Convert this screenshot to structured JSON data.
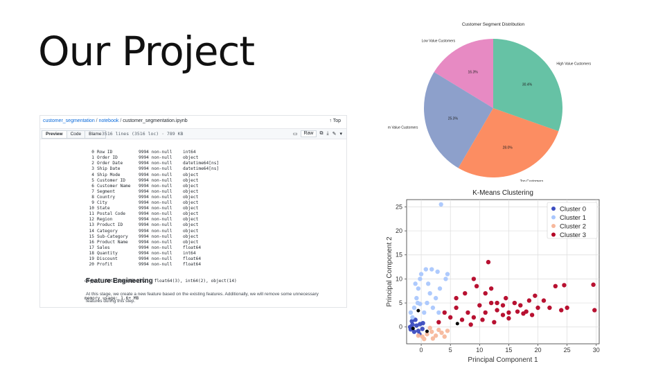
{
  "slide": {
    "title": "Our Project"
  },
  "github": {
    "path": {
      "repo": "customer_segmentation",
      "sep1": " / ",
      "folder": "notebook",
      "sep2": " / ",
      "file": "customer_segmentation.ipynb"
    },
    "top_label": "Top",
    "tabs": [
      {
        "label": "Preview"
      },
      {
        "label": "Code"
      },
      {
        "label": "Blame"
      }
    ],
    "file_info": "3516 lines (3516 loc) · 789 KB",
    "raw_label": "Raw",
    "columns": [
      {
        "i": "0",
        "name": "Row ID",
        "count": "9994 non-null",
        "type": "int64"
      },
      {
        "i": "1",
        "name": "Order ID",
        "count": "9994 non-null",
        "type": "object"
      },
      {
        "i": "2",
        "name": "Order Date",
        "count": "9994 non-null",
        "type": "datetime64[ns]"
      },
      {
        "i": "3",
        "name": "Ship Date",
        "count": "9994 non-null",
        "type": "datetime64[ns]"
      },
      {
        "i": "4",
        "name": "Ship Mode",
        "count": "9994 non-null",
        "type": "object"
      },
      {
        "i": "5",
        "name": "Customer ID",
        "count": "9994 non-null",
        "type": "object"
      },
      {
        "i": "6",
        "name": "Customer Name",
        "count": "9994 non-null",
        "type": "object"
      },
      {
        "i": "7",
        "name": "Segment",
        "count": "9994 non-null",
        "type": "object"
      },
      {
        "i": "8",
        "name": "Country",
        "count": "9994 non-null",
        "type": "object"
      },
      {
        "i": "9",
        "name": "City",
        "count": "9994 non-null",
        "type": "object"
      },
      {
        "i": "10",
        "name": "State",
        "count": "9994 non-null",
        "type": "object"
      },
      {
        "i": "11",
        "name": "Postal Code",
        "count": "9994 non-null",
        "type": "object"
      },
      {
        "i": "12",
        "name": "Region",
        "count": "9994 non-null",
        "type": "object"
      },
      {
        "i": "13",
        "name": "Product ID",
        "count": "9994 non-null",
        "type": "object"
      },
      {
        "i": "14",
        "name": "Category",
        "count": "9994 non-null",
        "type": "object"
      },
      {
        "i": "15",
        "name": "Sub-Category",
        "count": "9994 non-null",
        "type": "object"
      },
      {
        "i": "16",
        "name": "Product Name",
        "count": "9994 non-null",
        "type": "object"
      },
      {
        "i": "17",
        "name": "Sales",
        "count": "9994 non-null",
        "type": "float64"
      },
      {
        "i": "18",
        "name": "Quantity",
        "count": "9994 non-null",
        "type": "int64"
      },
      {
        "i": "19",
        "name": "Discount",
        "count": "9994 non-null",
        "type": "float64"
      },
      {
        "i": "20",
        "name": "Profit",
        "count": "9994 non-null",
        "type": "float64"
      }
    ],
    "dtypes_line": "dtypes: datetime64[ns](2), float64(3), int64(2), object(14)",
    "memory_line": "memory usage: 1.6+ MB",
    "feature_heading": "Feature Engineering",
    "feature_text": "At this stage, we create a new feature based on the existing features. Additionally, we will remove some unnecessary features during this step."
  },
  "chart_data": [
    {
      "type": "pie",
      "title": "Customer Segment Distribution",
      "slices": [
        {
          "label": "Low Value Customers",
          "value": 16.3,
          "pct_label": "16.3%",
          "color": "#e78ac3"
        },
        {
          "label": "Medium Value Customers",
          "value": 25.3,
          "pct_label": "25.3%",
          "color": "#8da0cb"
        },
        {
          "label": "Top Customers",
          "value": 28.0,
          "pct_label": "28.0%",
          "color": "#fc8d62"
        },
        {
          "label": "High Value Customers",
          "value": 30.4,
          "pct_label": "30.4%",
          "color": "#66c2a5"
        }
      ],
      "start_angle_deg": 90
    },
    {
      "type": "scatter",
      "title": "K-Means Clustering",
      "xlabel": "Principal Component 1",
      "ylabel": "Principal Component 2",
      "xlim": [
        -2.5,
        30.5
      ],
      "ylim": [
        -3.5,
        26.5
      ],
      "xticks": [
        0,
        5,
        10,
        15,
        20,
        25,
        30
      ],
      "yticks": [
        0,
        5,
        10,
        15,
        20,
        25
      ],
      "grid": true,
      "legend_position": "top-right",
      "series": [
        {
          "name": "Cluster 0",
          "color": "#3b4cc0",
          "points": [
            [
              -1.8,
              -0.5
            ],
            [
              -1.5,
              0.5
            ],
            [
              -1.2,
              -1
            ],
            [
              -0.8,
              0.3
            ],
            [
              -0.5,
              -0.8
            ],
            [
              -0.2,
              0.6
            ],
            [
              0.2,
              -0.4
            ],
            [
              -1.6,
              1.2
            ],
            [
              -1.0,
              1.5
            ],
            [
              0.3,
              0.8
            ],
            [
              -0.3,
              -1.5
            ],
            [
              -1.9,
              0.0
            ]
          ]
        },
        {
          "name": "Cluster 1",
          "color": "#aac7fd",
          "points": [
            [
              -1.5,
              2
            ],
            [
              -1.2,
              4
            ],
            [
              -0.8,
              6
            ],
            [
              -0.5,
              8
            ],
            [
              -0.2,
              10
            ],
            [
              0.5,
              3
            ],
            [
              1,
              5
            ],
            [
              1.5,
              7
            ],
            [
              2,
              4
            ],
            [
              -1.8,
              3
            ],
            [
              -1,
              9
            ],
            [
              0,
              11
            ],
            [
              1.2,
              9
            ],
            [
              2.5,
              6
            ],
            [
              3,
              3
            ],
            [
              0.8,
              12
            ],
            [
              -0.6,
              5
            ],
            [
              3.4,
              25.5
            ],
            [
              4.2,
              10
            ],
            [
              4.5,
              11
            ],
            [
              3.2,
              8
            ],
            [
              2.8,
              11.5
            ],
            [
              1.8,
              12
            ],
            [
              -0.2,
              4.8
            ]
          ]
        },
        {
          "name": "Cluster 2",
          "color": "#f7b89c",
          "points": [
            [
              -0.5,
              -1.8
            ],
            [
              0.2,
              -2
            ],
            [
              1,
              -1.5
            ],
            [
              1.8,
              -1
            ],
            [
              2.5,
              -1.8
            ],
            [
              3.5,
              -1.2
            ],
            [
              4,
              -2
            ],
            [
              0.5,
              -2.5
            ],
            [
              2,
              -2.4
            ],
            [
              3,
              -0.6
            ],
            [
              4.5,
              -0.8
            ],
            [
              1.5,
              -0.2
            ]
          ]
        },
        {
          "name": "Cluster 3",
          "color": "#b40426",
          "points": [
            [
              3,
              1
            ],
            [
              4,
              3
            ],
            [
              5,
              2
            ],
            [
              6,
              4
            ],
            [
              7,
              1.5
            ],
            [
              8,
              3
            ],
            [
              9,
              2
            ],
            [
              10,
              4.5
            ],
            [
              11,
              3
            ],
            [
              12,
              5
            ],
            [
              11,
              7
            ],
            [
              9.5,
              8.5
            ],
            [
              7.5,
              7
            ],
            [
              6,
              6
            ],
            [
              9,
              10
            ],
            [
              12,
              8
            ],
            [
              11.5,
              13.5
            ],
            [
              13,
              5
            ],
            [
              14,
              4.5
            ],
            [
              15,
              3
            ],
            [
              16,
              5
            ],
            [
              17,
              4.5
            ],
            [
              18,
              3.2
            ],
            [
              19,
              2.5
            ],
            [
              19.5,
              6.5
            ],
            [
              20,
              4
            ],
            [
              21,
              5.5
            ],
            [
              22,
              4
            ],
            [
              23,
              8.5
            ],
            [
              24.5,
              8.7
            ],
            [
              25,
              4
            ],
            [
              24,
              3.5
            ],
            [
              29.5,
              8.8
            ],
            [
              29.7,
              3.5
            ],
            [
              15,
              1.8
            ],
            [
              14,
              2.5
            ],
            [
              16.5,
              3.2
            ],
            [
              17.5,
              2.8
            ],
            [
              13,
              3.5
            ],
            [
              14.5,
              6
            ],
            [
              18.5,
              5.5
            ],
            [
              8.5,
              0.5
            ],
            [
              10.5,
              1.5
            ],
            [
              12.5,
              1.0
            ]
          ]
        }
      ],
      "centroids": [
        [
          -1.4,
          -0.3
        ],
        [
          -0.5,
          3.4
        ],
        [
          1.0,
          -0.9
        ],
        [
          6.2,
          0.7
        ]
      ]
    }
  ]
}
